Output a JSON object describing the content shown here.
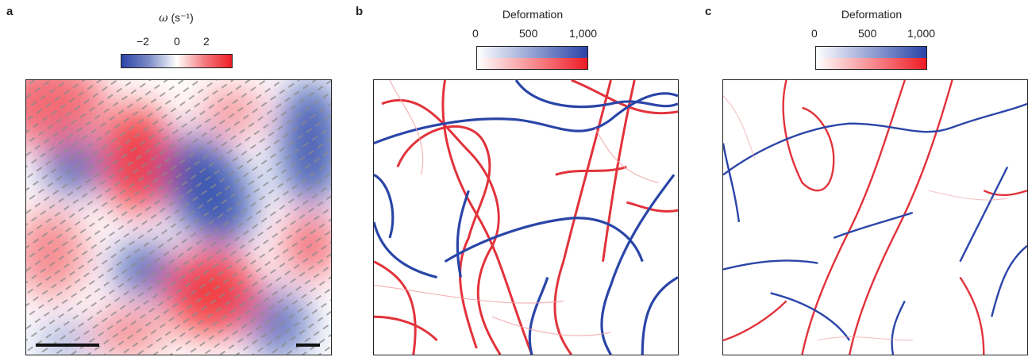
{
  "panels": [
    {
      "letter": "a",
      "colorbar": {
        "symbol": "ω",
        "unit": "(s⁻¹)",
        "ticks": [
          "−2",
          "0",
          "2"
        ],
        "colors": [
          "#2a45a8",
          "#ffffff",
          "#ee1c25"
        ]
      }
    },
    {
      "letter": "b",
      "colorbar": {
        "title": "Deformation",
        "ticks": [
          "0",
          "500",
          "1,000"
        ],
        "colors_top": [
          "#ffffff",
          "#2a45a8"
        ],
        "colors_bottom": [
          "#ffffff",
          "#ee1c25"
        ]
      }
    },
    {
      "letter": "c",
      "colorbar": {
        "title": "Deformation",
        "ticks": [
          "0",
          "500",
          "1,000"
        ],
        "colors_top": [
          "#ffffff",
          "#2a45a8"
        ],
        "colors_bottom": [
          "#ffffff",
          "#ee1c25"
        ]
      }
    }
  ]
}
